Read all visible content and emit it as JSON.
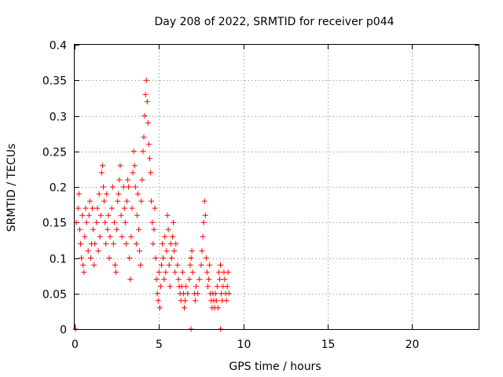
{
  "chart_data": {
    "type": "scatter",
    "title": "Day 208 of 2022, SRMTID for receiver p044",
    "xlabel": "GPS time / hours",
    "ylabel": "SRMTID / TECUs",
    "xlim": [
      0,
      24
    ],
    "ylim": [
      0,
      0.4
    ],
    "xticks": [
      0,
      5,
      10,
      15,
      20
    ],
    "xtick_labels": [
      "0",
      "5",
      "10",
      "15",
      "20"
    ],
    "yticks": [
      0,
      0.05,
      0.1,
      0.15,
      0.2,
      0.25,
      0.3,
      0.35,
      0.4
    ],
    "ytick_labels": [
      "0",
      "0.05",
      "0.1",
      "0.15",
      "0.2",
      "0.25",
      "0.3",
      "0.35",
      "0.4"
    ],
    "grid": true,
    "marker": "plus",
    "color": "#ff0000",
    "series": [
      {
        "name": "SRMTID",
        "points": [
          [
            0.1,
            0.15
          ],
          [
            0.2,
            0.17
          ],
          [
            0.25,
            0.19
          ],
          [
            0.3,
            0.14
          ],
          [
            0.35,
            0.12
          ],
          [
            0.4,
            0.1
          ],
          [
            0.45,
            0.16
          ],
          [
            0.5,
            0.09
          ],
          [
            0.55,
            0.08
          ],
          [
            0.6,
            0.13
          ],
          [
            0.65,
            0.17
          ],
          [
            0.7,
            0.15
          ],
          [
            0.8,
            0.11
          ],
          [
            0.85,
            0.16
          ],
          [
            0.9,
            0.18
          ],
          [
            0.95,
            0.1
          ],
          [
            1.0,
            0.12
          ],
          [
            1.05,
            0.17
          ],
          [
            1.1,
            0.14
          ],
          [
            1.15,
            0.09
          ],
          [
            1.2,
            0.12
          ],
          [
            1.3,
            0.15
          ],
          [
            1.35,
            0.17
          ],
          [
            1.4,
            0.11
          ],
          [
            1.45,
            0.19
          ],
          [
            1.5,
            0.13
          ],
          [
            1.55,
            0.16
          ],
          [
            1.6,
            0.22
          ],
          [
            1.65,
            0.23
          ],
          [
            1.7,
            0.2
          ],
          [
            1.75,
            0.18
          ],
          [
            1.8,
            0.15
          ],
          [
            1.85,
            0.12
          ],
          [
            1.9,
            0.19
          ],
          [
            1.95,
            0.14
          ],
          [
            2.0,
            0.16
          ],
          [
            2.05,
            0.1
          ],
          [
            2.1,
            0.13
          ],
          [
            2.2,
            0.17
          ],
          [
            2.25,
            0.2
          ],
          [
            2.3,
            0.12
          ],
          [
            2.35,
            0.15
          ],
          [
            2.4,
            0.09
          ],
          [
            2.45,
            0.08
          ],
          [
            2.5,
            0.14
          ],
          [
            2.55,
            0.18
          ],
          [
            2.6,
            0.19
          ],
          [
            2.65,
            0.21
          ],
          [
            2.7,
            0.23
          ],
          [
            2.75,
            0.16
          ],
          [
            2.8,
            0.13
          ],
          [
            2.9,
            0.2
          ],
          [
            2.95,
            0.17
          ],
          [
            3.0,
            0.15
          ],
          [
            3.05,
            0.12
          ],
          [
            3.1,
            0.18
          ],
          [
            3.15,
            0.21
          ],
          [
            3.2,
            0.2
          ],
          [
            3.25,
            0.1
          ],
          [
            3.3,
            0.07
          ],
          [
            3.35,
            0.13
          ],
          [
            3.4,
            0.17
          ],
          [
            3.45,
            0.22
          ],
          [
            3.5,
            0.25
          ],
          [
            3.55,
            0.23
          ],
          [
            3.6,
            0.2
          ],
          [
            3.65,
            0.12
          ],
          [
            3.7,
            0.16
          ],
          [
            3.75,
            0.19
          ],
          [
            3.8,
            0.14
          ],
          [
            3.85,
            0.11
          ],
          [
            3.9,
            0.09
          ],
          [
            3.95,
            0.18
          ],
          [
            4.0,
            0.21
          ],
          [
            4.05,
            0.25
          ],
          [
            4.1,
            0.27
          ],
          [
            4.15,
            0.3
          ],
          [
            4.2,
            0.33
          ],
          [
            4.25,
            0.35
          ],
          [
            4.3,
            0.32
          ],
          [
            4.35,
            0.29
          ],
          [
            4.4,
            0.26
          ],
          [
            4.45,
            0.24
          ],
          [
            4.5,
            0.22
          ],
          [
            4.55,
            0.18
          ],
          [
            4.6,
            0.15
          ],
          [
            4.65,
            0.12
          ],
          [
            4.7,
            0.14
          ],
          [
            4.75,
            0.17
          ],
          [
            4.8,
            0.1
          ],
          [
            4.85,
            0.07
          ],
          [
            4.9,
            0.05
          ],
          [
            4.95,
            0.04
          ],
          [
            5.0,
            0.08
          ],
          [
            5.05,
            0.03
          ],
          [
            5.1,
            0.06
          ],
          [
            5.15,
            0.09
          ],
          [
            5.2,
            0.12
          ],
          [
            5.25,
            0.1
          ],
          [
            5.3,
            0.07
          ],
          [
            5.35,
            0.13
          ],
          [
            5.4,
            0.08
          ],
          [
            5.45,
            0.11
          ],
          [
            5.5,
            0.16
          ],
          [
            5.55,
            0.14
          ],
          [
            5.6,
            0.09
          ],
          [
            5.65,
            0.06
          ],
          [
            5.7,
            0.12
          ],
          [
            5.75,
            0.1
          ],
          [
            5.8,
            0.13
          ],
          [
            5.85,
            0.15
          ],
          [
            5.9,
            0.11
          ],
          [
            5.95,
            0.08
          ],
          [
            6.0,
            0.12
          ],
          [
            6.1,
            0.09
          ],
          [
            6.15,
            0.07
          ],
          [
            6.2,
            0.06
          ],
          [
            6.25,
            0.05
          ],
          [
            6.3,
            0.04
          ],
          [
            6.35,
            0.06
          ],
          [
            6.4,
            0.08
          ],
          [
            6.45,
            0.05
          ],
          [
            6.5,
            0.03
          ],
          [
            6.55,
            0.04
          ],
          [
            6.6,
            0.06
          ],
          [
            6.7,
            0.05
          ],
          [
            6.8,
            0.07
          ],
          [
            6.85,
            0.09
          ],
          [
            6.9,
            0.1
          ],
          [
            6.95,
            0.11
          ],
          [
            7.0,
            0.08
          ],
          [
            7.1,
            0.05
          ],
          [
            7.15,
            0.04
          ],
          [
            7.2,
            0.06
          ],
          [
            7.3,
            0.05
          ],
          [
            7.4,
            0.07
          ],
          [
            7.5,
            0.09
          ],
          [
            7.55,
            0.11
          ],
          [
            7.6,
            0.13
          ],
          [
            7.65,
            0.15
          ],
          [
            7.7,
            0.18
          ],
          [
            7.75,
            0.16
          ],
          [
            7.8,
            0.1
          ],
          [
            7.85,
            0.08
          ],
          [
            7.9,
            0.06
          ],
          [
            7.95,
            0.07
          ],
          [
            8.0,
            0.09
          ],
          [
            8.05,
            0.05
          ],
          [
            8.1,
            0.04
          ],
          [
            8.15,
            0.03
          ],
          [
            8.2,
            0.05
          ],
          [
            8.25,
            0.04
          ],
          [
            8.3,
            0.03
          ],
          [
            8.35,
            0.05
          ],
          [
            8.4,
            0.04
          ],
          [
            8.45,
            0.06
          ],
          [
            8.5,
            0.03
          ],
          [
            8.55,
            0.08
          ],
          [
            8.6,
            0.07
          ],
          [
            8.65,
            0.09
          ],
          [
            8.7,
            0.05
          ],
          [
            8.75,
            0.04
          ],
          [
            8.8,
            0.06
          ],
          [
            8.85,
            0.08
          ],
          [
            8.9,
            0.07
          ],
          [
            8.95,
            0.05
          ],
          [
            9.0,
            0.04
          ],
          [
            9.05,
            0.06
          ],
          [
            9.1,
            0.08
          ],
          [
            9.15,
            0.05
          ],
          [
            0.05,
            0.0
          ],
          [
            6.9,
            0.0
          ],
          [
            8.65,
            0.0
          ]
        ]
      }
    ]
  }
}
